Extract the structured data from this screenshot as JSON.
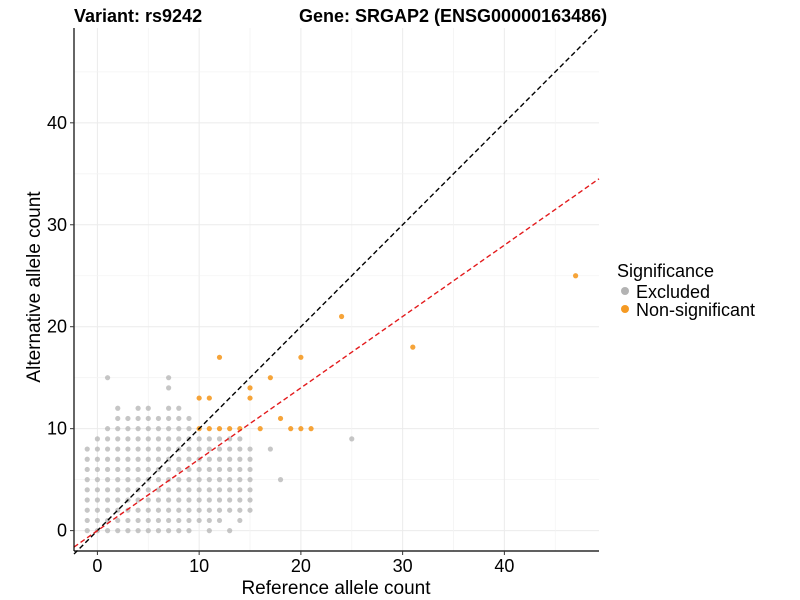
{
  "title": {
    "variant": "Variant: rs9242",
    "gene": "Gene: SRGAP2 (ENSG00000163486)"
  },
  "chart_data": {
    "type": "scatter",
    "xlabel": "Reference allele count",
    "ylabel": "Alternative allele count",
    "xlim": [
      -2.3,
      49.3
    ],
    "ylim": [
      -2.0,
      49.3
    ],
    "x_ticks": [
      0,
      10,
      20,
      30,
      40
    ],
    "y_ticks": [
      0,
      10,
      20,
      30,
      40
    ],
    "grid": true,
    "legend": {
      "title": "Significance",
      "placement": "right",
      "entries": [
        {
          "label": "Excluded",
          "color": "#b3b3b3"
        },
        {
          "label": "Non-significant",
          "color": "#f59a23"
        }
      ]
    },
    "reference_lines": [
      {
        "slope": 1.0,
        "intercept": 0,
        "color": "#000000",
        "style": "dashed"
      },
      {
        "slope": 0.7,
        "intercept": 0,
        "color": "#e31a1c",
        "style": "dashed"
      }
    ],
    "series": [
      {
        "name": "Excluded",
        "color": "#b3b3b3",
        "points": [
          [
            -1,
            8
          ],
          [
            -1,
            7
          ],
          [
            -1,
            6
          ],
          [
            -1,
            5
          ],
          [
            -1,
            4
          ],
          [
            -1,
            3
          ],
          [
            -1,
            2
          ],
          [
            -1,
            1
          ],
          [
            -1,
            0
          ],
          [
            0,
            9
          ],
          [
            0,
            8
          ],
          [
            0,
            7
          ],
          [
            0,
            6
          ],
          [
            0,
            5
          ],
          [
            0,
            4
          ],
          [
            0,
            3
          ],
          [
            0,
            2
          ],
          [
            0,
            1
          ],
          [
            0,
            0
          ],
          [
            1,
            15
          ],
          [
            1,
            10
          ],
          [
            1,
            9
          ],
          [
            1,
            8
          ],
          [
            1,
            7
          ],
          [
            1,
            6
          ],
          [
            1,
            5
          ],
          [
            1,
            4
          ],
          [
            1,
            3
          ],
          [
            1,
            2
          ],
          [
            1,
            1
          ],
          [
            1,
            0
          ],
          [
            2,
            12
          ],
          [
            2,
            11
          ],
          [
            2,
            10
          ],
          [
            2,
            9
          ],
          [
            2,
            8
          ],
          [
            2,
            7
          ],
          [
            2,
            6
          ],
          [
            2,
            5
          ],
          [
            2,
            4
          ],
          [
            2,
            3
          ],
          [
            2,
            2
          ],
          [
            2,
            1
          ],
          [
            2,
            0
          ],
          [
            3,
            11
          ],
          [
            3,
            10
          ],
          [
            3,
            9
          ],
          [
            3,
            8
          ],
          [
            3,
            7
          ],
          [
            3,
            6
          ],
          [
            3,
            5
          ],
          [
            3,
            4
          ],
          [
            3,
            3
          ],
          [
            3,
            2
          ],
          [
            3,
            1
          ],
          [
            3,
            0
          ],
          [
            4,
            12
          ],
          [
            4,
            11
          ],
          [
            4,
            10
          ],
          [
            4,
            9
          ],
          [
            4,
            8
          ],
          [
            4,
            7
          ],
          [
            4,
            6
          ],
          [
            4,
            5
          ],
          [
            4,
            4
          ],
          [
            4,
            3
          ],
          [
            4,
            2
          ],
          [
            4,
            1
          ],
          [
            4,
            0
          ],
          [
            5,
            12
          ],
          [
            5,
            11
          ],
          [
            5,
            10
          ],
          [
            5,
            9
          ],
          [
            5,
            8
          ],
          [
            5,
            7
          ],
          [
            5,
            6
          ],
          [
            5,
            5
          ],
          [
            5,
            4
          ],
          [
            5,
            3
          ],
          [
            5,
            2
          ],
          [
            5,
            1
          ],
          [
            5,
            0
          ],
          [
            6,
            11
          ],
          [
            6,
            10
          ],
          [
            6,
            9
          ],
          [
            6,
            8
          ],
          [
            6,
            7
          ],
          [
            6,
            6
          ],
          [
            6,
            5
          ],
          [
            6,
            4
          ],
          [
            6,
            3
          ],
          [
            6,
            2
          ],
          [
            6,
            1
          ],
          [
            6,
            0
          ],
          [
            7,
            15
          ],
          [
            7,
            14
          ],
          [
            7,
            12
          ],
          [
            7,
            11
          ],
          [
            7,
            10
          ],
          [
            7,
            9
          ],
          [
            7,
            8
          ],
          [
            7,
            7
          ],
          [
            7,
            6
          ],
          [
            7,
            5
          ],
          [
            7,
            4
          ],
          [
            7,
            3
          ],
          [
            7,
            2
          ],
          [
            7,
            1
          ],
          [
            7,
            0
          ],
          [
            8,
            12
          ],
          [
            8,
            11
          ],
          [
            8,
            10
          ],
          [
            8,
            9
          ],
          [
            8,
            8
          ],
          [
            8,
            7
          ],
          [
            8,
            6
          ],
          [
            8,
            5
          ],
          [
            8,
            4
          ],
          [
            8,
            3
          ],
          [
            8,
            2
          ],
          [
            8,
            1
          ],
          [
            8,
            0
          ],
          [
            9,
            11
          ],
          [
            9,
            10
          ],
          [
            9,
            9
          ],
          [
            9,
            8
          ],
          [
            9,
            7
          ],
          [
            9,
            6
          ],
          [
            9,
            5
          ],
          [
            9,
            4
          ],
          [
            9,
            3
          ],
          [
            9,
            2
          ],
          [
            9,
            1
          ],
          [
            9,
            0
          ],
          [
            10,
            9
          ],
          [
            10,
            8
          ],
          [
            10,
            7
          ],
          [
            10,
            6
          ],
          [
            10,
            5
          ],
          [
            10,
            4
          ],
          [
            10,
            3
          ],
          [
            10,
            2
          ],
          [
            10,
            1
          ],
          [
            11,
            9
          ],
          [
            11,
            8
          ],
          [
            11,
            7
          ],
          [
            11,
            6
          ],
          [
            11,
            5
          ],
          [
            11,
            4
          ],
          [
            11,
            3
          ],
          [
            11,
            2
          ],
          [
            11,
            1
          ],
          [
            11,
            0
          ],
          [
            12,
            9
          ],
          [
            12,
            8
          ],
          [
            12,
            7
          ],
          [
            12,
            6
          ],
          [
            12,
            5
          ],
          [
            12,
            4
          ],
          [
            12,
            3
          ],
          [
            12,
            2
          ],
          [
            12,
            1
          ],
          [
            13,
            9
          ],
          [
            13,
            8
          ],
          [
            13,
            7
          ],
          [
            13,
            6
          ],
          [
            13,
            5
          ],
          [
            13,
            4
          ],
          [
            13,
            3
          ],
          [
            13,
            2
          ],
          [
            13,
            0
          ],
          [
            14,
            9
          ],
          [
            14,
            8
          ],
          [
            14,
            7
          ],
          [
            14,
            6
          ],
          [
            14,
            5
          ],
          [
            14,
            4
          ],
          [
            14,
            3
          ],
          [
            14,
            2
          ],
          [
            14,
            1
          ],
          [
            15,
            8
          ],
          [
            15,
            7
          ],
          [
            15,
            6
          ],
          [
            15,
            5
          ],
          [
            15,
            4
          ],
          [
            15,
            3
          ],
          [
            15,
            2
          ],
          [
            17,
            8
          ],
          [
            18,
            5
          ],
          [
            25,
            9
          ]
        ]
      },
      {
        "name": "Non-significant",
        "color": "#f59a23",
        "points": [
          [
            10,
            13
          ],
          [
            11,
            13
          ],
          [
            12,
            17
          ],
          [
            15,
            14
          ],
          [
            15,
            13
          ],
          [
            17,
            15
          ],
          [
            18,
            11
          ],
          [
            10,
            10
          ],
          [
            11,
            10
          ],
          [
            12,
            10
          ],
          [
            13,
            10
          ],
          [
            14,
            10
          ],
          [
            16,
            10
          ],
          [
            19,
            10
          ],
          [
            20,
            10
          ],
          [
            21,
            10
          ],
          [
            20,
            17
          ],
          [
            24,
            21
          ],
          [
            31,
            18
          ],
          [
            47,
            25
          ]
        ]
      }
    ]
  }
}
